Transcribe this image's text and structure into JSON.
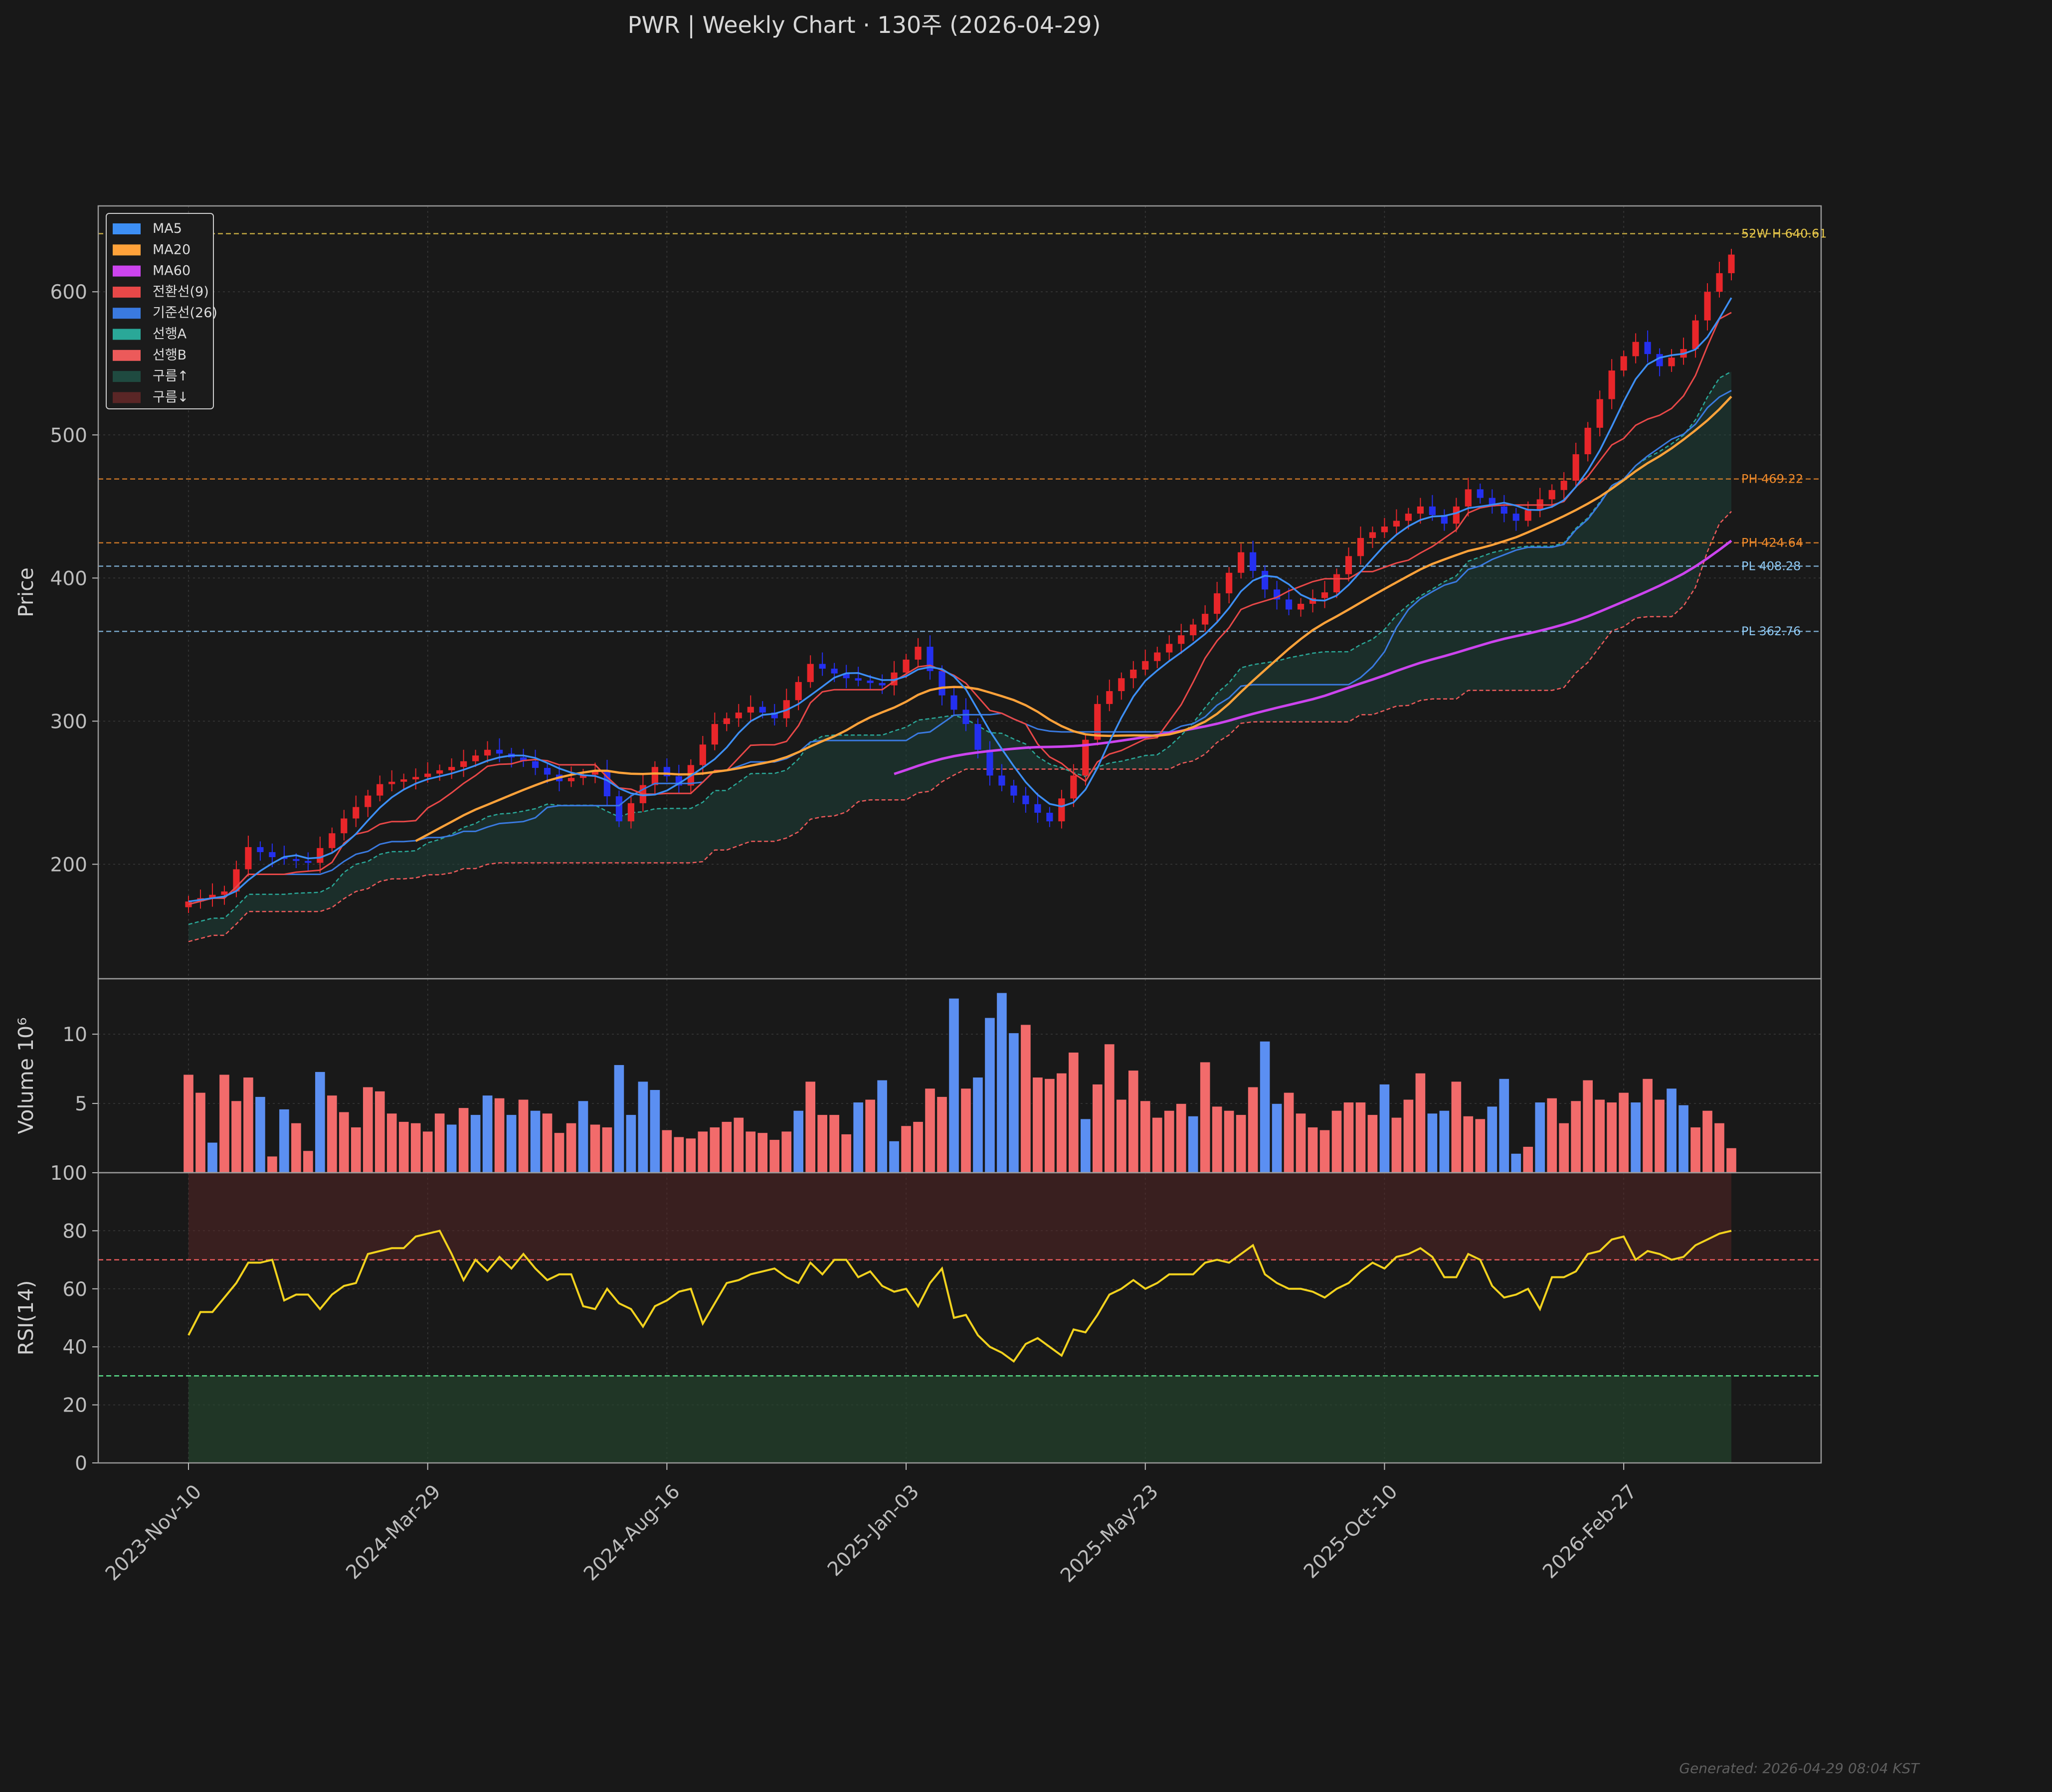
{
  "title": "PWR  |  Weekly Chart · 130주  (2026-04-29)",
  "footer": "Generated: 2026-04-29 08:04 KST",
  "colors": {
    "background": "#181818",
    "panel": "#191919",
    "grid": "#3a3a3a",
    "up": "#e8262a",
    "down": "#2430f0",
    "vol_up": "#f26b6b",
    "vol_down": "#5b8ff2",
    "ma5": "#3d8ff5",
    "ma20": "#ffa23a",
    "ma60": "#cc44ee",
    "tenkan": "#e84848",
    "kijun": "#3a7ae0",
    "span_a": "#2aa898",
    "span_b": "#ec5a5a",
    "rsi": "#f2d21e",
    "overbought": "#e85a5a",
    "oversold": "#5ae08a"
  },
  "chart_data": [
    {
      "type": "candlestick",
      "ylabel": "Price",
      "ylim": [
        120,
        660
      ],
      "yticks": [
        "200",
        "300",
        "400",
        "500",
        "600"
      ],
      "xtick_labels": [
        "2023-Nov-10",
        "2024-Mar-29",
        "2024-Aug-16",
        "2025-Jan-03",
        "2025-May-23",
        "2025-Oct-10",
        "2026-Feb-27"
      ],
      "xtick_index": [
        0,
        20,
        40,
        60,
        80,
        100,
        120
      ],
      "legend": {
        "placement": "top-left",
        "entries": [
          {
            "label": "MA5",
            "color": "#3d8ff5"
          },
          {
            "label": "MA20",
            "color": "#ffa23a"
          },
          {
            "label": "MA60",
            "color": "#cc44ee"
          },
          {
            "label": "전환선(9)",
            "color": "#e84848"
          },
          {
            "label": "기준선(26)",
            "color": "#3a7ae0"
          },
          {
            "label": "선행A",
            "color": "#2aa898"
          },
          {
            "label": "선행B",
            "color": "#ec5a5a"
          },
          {
            "label": "구름↑",
            "color": "#1f4a40"
          },
          {
            "label": "구름↓",
            "color": "#5a2626"
          }
        ]
      },
      "levels": [
        {
          "label": "52W H 640.61",
          "value": 640.61,
          "color": "#e8c84a"
        },
        {
          "label": "PH 469.22",
          "value": 469.22,
          "color": "#f08a2a"
        },
        {
          "label": "PH 424.64",
          "value": 424.64,
          "color": "#f08a2a"
        },
        {
          "label": "PL 408.28",
          "value": 408.28,
          "color": "#8ec8f2"
        },
        {
          "label": "PL 362.76",
          "value": 362.76,
          "color": "#8ec8f2"
        }
      ],
      "close_anchors": [
        [
          0,
          174
        ],
        [
          3,
          181
        ],
        [
          5,
          212
        ],
        [
          7,
          205
        ],
        [
          10,
          201
        ],
        [
          13,
          232
        ],
        [
          16,
          256
        ],
        [
          19,
          261
        ],
        [
          22,
          268
        ],
        [
          25,
          280
        ],
        [
          28,
          272
        ],
        [
          31,
          258
        ],
        [
          34,
          265
        ],
        [
          36,
          230
        ],
        [
          39,
          268
        ],
        [
          41,
          255
        ],
        [
          44,
          298
        ],
        [
          47,
          310
        ],
        [
          49,
          302
        ],
        [
          52,
          340
        ],
        [
          55,
          330
        ],
        [
          58,
          325
        ],
        [
          61,
          352
        ],
        [
          63,
          318
        ],
        [
          65,
          298
        ],
        [
          67,
          262
        ],
        [
          69,
          248
        ],
        [
          72,
          230
        ],
        [
          74,
          262
        ],
        [
          76,
          312
        ],
        [
          78,
          330
        ],
        [
          80,
          342
        ],
        [
          83,
          360
        ],
        [
          85,
          375
        ],
        [
          88,
          418
        ],
        [
          90,
          392
        ],
        [
          92,
          378
        ],
        [
          95,
          390
        ],
        [
          98,
          428
        ],
        [
          101,
          440
        ],
        [
          103,
          450
        ],
        [
          105,
          438
        ],
        [
          107,
          462
        ],
        [
          109,
          450
        ],
        [
          111,
          440
        ],
        [
          113,
          455
        ],
        [
          115,
          468
        ],
        [
          117,
          505
        ],
        [
          119,
          545
        ],
        [
          121,
          565
        ],
        [
          123,
          548
        ],
        [
          125,
          560
        ],
        [
          127,
          600
        ],
        [
          129,
          626
        ]
      ],
      "ma_start": {
        "ma5": 0,
        "ma20": 19,
        "ma60": 59
      },
      "ichimoku_cloud_span": {
        "first_index": 0,
        "last_index": 129
      }
    },
    {
      "type": "bar",
      "ylabel": "Volume  10⁶",
      "ylim": [
        0,
        14
      ],
      "yticks": [
        "5",
        "10"
      ],
      "values": [
        7.1,
        5.8,
        2.2,
        7.1,
        5.2,
        6.9,
        5.5,
        1.2,
        4.6,
        3.6,
        1.6,
        7.3,
        5.6,
        4.4,
        3.3,
        6.2,
        5.9,
        4.3,
        3.7,
        3.6,
        3.0,
        4.3,
        3.5,
        4.7,
        4.2,
        5.6,
        5.4,
        4.2,
        5.3,
        4.5,
        4.3,
        2.9,
        3.6,
        5.2,
        3.5,
        3.3,
        7.8,
        4.2,
        6.6,
        6.0,
        3.1,
        2.6,
        2.5,
        3.0,
        3.3,
        3.7,
        4.0,
        3.0,
        2.9,
        2.4,
        3.0,
        4.5,
        6.6,
        4.2,
        4.2,
        2.8,
        5.1,
        5.3,
        6.7,
        2.3,
        3.4,
        3.7,
        6.1,
        5.5,
        12.6,
        6.1,
        6.9,
        11.2,
        13.0,
        10.1,
        10.7,
        6.9,
        6.8,
        7.2,
        8.7,
        3.9,
        6.4,
        9.3,
        5.3,
        7.4,
        5.2,
        4.0,
        4.5,
        5.0,
        4.1,
        8.0,
        4.8,
        4.5,
        4.2,
        6.2,
        9.5,
        5.0,
        5.8,
        4.3,
        3.3,
        3.1,
        4.5,
        5.1,
        5.1,
        4.2,
        6.4,
        4.0,
        5.3,
        7.2,
        4.3,
        4.5,
        6.6,
        4.1,
        3.9,
        4.8,
        6.8,
        1.4,
        1.9,
        5.1,
        5.4,
        3.6,
        5.2,
        6.7,
        5.3,
        5.1,
        5.8,
        5.1,
        6.8,
        5.3,
        6.1,
        4.9,
        3.3,
        4.5,
        3.6,
        1.8
      ],
      "up_pattern": [
        1,
        1,
        0,
        1,
        1,
        1,
        0,
        1,
        0,
        1,
        1,
        0,
        1,
        1,
        1,
        1,
        1,
        1,
        1,
        1,
        1,
        1,
        0,
        1,
        0,
        0,
        1,
        0,
        1,
        0,
        1,
        1,
        1,
        0,
        1,
        1,
        0,
        0,
        0,
        0,
        1,
        1,
        1,
        1,
        1,
        1,
        1,
        1,
        1,
        1,
        1,
        0,
        1,
        1,
        1,
        1,
        0,
        1,
        0,
        0,
        1,
        1,
        1,
        1,
        0,
        1,
        0,
        0,
        0,
        0,
        1,
        1,
        1,
        1,
        1,
        0,
        1,
        1,
        1,
        1,
        1,
        1,
        1,
        1,
        0,
        1,
        1,
        1,
        1,
        1,
        0,
        0,
        1,
        1,
        1,
        1,
        1,
        1,
        1,
        1,
        0,
        1,
        1,
        1,
        0,
        0,
        1,
        1,
        1,
        0,
        0,
        0,
        1,
        0,
        1,
        1,
        1,
        1,
        1,
        1,
        1,
        0,
        1,
        1,
        0,
        0,
        1,
        1,
        1,
        1
      ]
    },
    {
      "type": "line",
      "ylabel": "RSI(14)",
      "ylim": [
        0,
        100
      ],
      "yticks": [
        "0",
        "20",
        "40",
        "60",
        "80",
        "100"
      ],
      "overbought": 70,
      "oversold": 30,
      "values": [
        44,
        52,
        52,
        57,
        62,
        69,
        69,
        70,
        56,
        58,
        58,
        53,
        58,
        61,
        62,
        72,
        73,
        74,
        74,
        78,
        79,
        80,
        72,
        63,
        70,
        66,
        71,
        67,
        72,
        67,
        63,
        65,
        65,
        54,
        53,
        60,
        55,
        53,
        47,
        54,
        56,
        59,
        60,
        48,
        55,
        62,
        63,
        65,
        66,
        67,
        64,
        62,
        69,
        65,
        70,
        70,
        64,
        66,
        61,
        59,
        60,
        54,
        62,
        67,
        50,
        51,
        44,
        40,
        38,
        35,
        41,
        43,
        40,
        37,
        46,
        45,
        51,
        58,
        60,
        63,
        60,
        62,
        65,
        65,
        65,
        69,
        70,
        69,
        72,
        75,
        65,
        62,
        60,
        60,
        59,
        57,
        60,
        62,
        66,
        69,
        67,
        71,
        72,
        74,
        71,
        64,
        64,
        72,
        70,
        61,
        57,
        58,
        60,
        53,
        64,
        64,
        66,
        72,
        73,
        77,
        78,
        70,
        73,
        72,
        70,
        71,
        75,
        77,
        79,
        80
      ]
    }
  ]
}
